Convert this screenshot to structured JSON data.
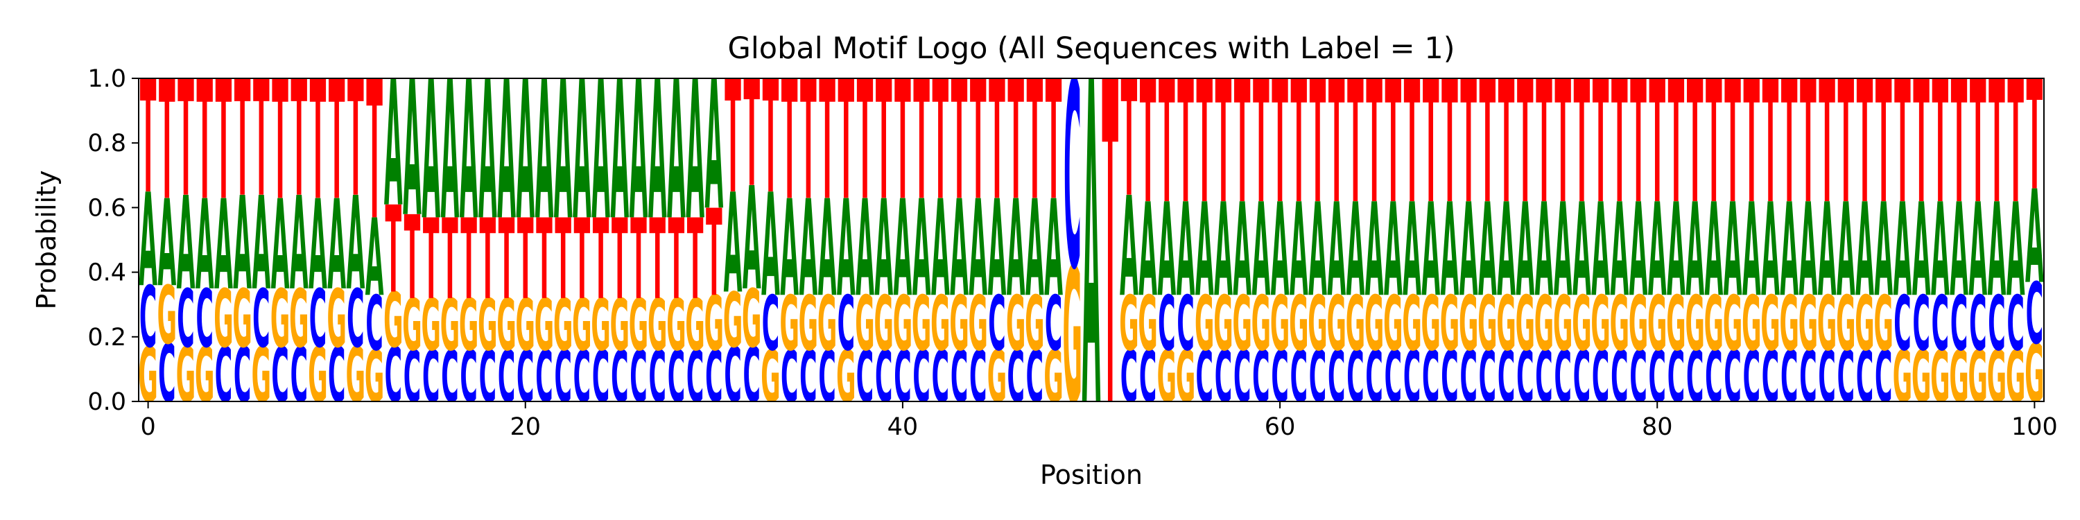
{
  "chart_data": {
    "type": "sequence-logo",
    "title": "Global Motif Logo (All Sequences with Label = 1)",
    "xlabel": "Position",
    "ylabel": "Probability",
    "xlim": [
      -0.5,
      100.5
    ],
    "ylim": [
      0,
      1
    ],
    "xticks": [
      0,
      20,
      40,
      60,
      80,
      100
    ],
    "yticks": [
      0.0,
      0.2,
      0.4,
      0.6,
      0.8,
      1.0
    ],
    "ytick_labels": [
      "0.0",
      "0.2",
      "0.4",
      "0.6",
      "0.8",
      "1.0"
    ],
    "grid": false,
    "legend": "none",
    "letters": [
      "A",
      "C",
      "G",
      "T"
    ],
    "colors": {
      "A": "#008000",
      "C": "#0000ff",
      "G": "#ffa500",
      "T": "#ff0000"
    },
    "positions": [
      {
        "A": 0.29,
        "C": 0.19,
        "G": 0.17,
        "T": 0.35
      },
      {
        "A": 0.27,
        "C": 0.18,
        "G": 0.18,
        "T": 0.37
      },
      {
        "A": 0.29,
        "C": 0.18,
        "G": 0.17,
        "T": 0.36
      },
      {
        "A": 0.28,
        "C": 0.18,
        "G": 0.17,
        "T": 0.37
      },
      {
        "A": 0.28,
        "C": 0.17,
        "G": 0.18,
        "T": 0.37
      },
      {
        "A": 0.29,
        "C": 0.17,
        "G": 0.18,
        "T": 0.36
      },
      {
        "A": 0.29,
        "C": 0.18,
        "G": 0.17,
        "T": 0.36
      },
      {
        "A": 0.28,
        "C": 0.17,
        "G": 0.18,
        "T": 0.37
      },
      {
        "A": 0.29,
        "C": 0.17,
        "G": 0.18,
        "T": 0.36
      },
      {
        "A": 0.28,
        "C": 0.18,
        "G": 0.17,
        "T": 0.37
      },
      {
        "A": 0.28,
        "C": 0.17,
        "G": 0.18,
        "T": 0.37
      },
      {
        "A": 0.29,
        "C": 0.18,
        "G": 0.17,
        "T": 0.36
      },
      {
        "A": 0.24,
        "C": 0.17,
        "G": 0.16,
        "T": 0.43
      },
      {
        "A": 0.39,
        "C": 0.17,
        "G": 0.17,
        "T": 0.27
      },
      {
        "A": 0.42,
        "C": 0.16,
        "G": 0.16,
        "T": 0.26
      },
      {
        "A": 0.43,
        "C": 0.16,
        "G": 0.16,
        "T": 0.25
      },
      {
        "A": 0.43,
        "C": 0.16,
        "G": 0.16,
        "T": 0.25
      },
      {
        "A": 0.43,
        "C": 0.16,
        "G": 0.16,
        "T": 0.25
      },
      {
        "A": 0.43,
        "C": 0.16,
        "G": 0.16,
        "T": 0.25
      },
      {
        "A": 0.43,
        "C": 0.16,
        "G": 0.16,
        "T": 0.25
      },
      {
        "A": 0.43,
        "C": 0.16,
        "G": 0.16,
        "T": 0.25
      },
      {
        "A": 0.43,
        "C": 0.16,
        "G": 0.16,
        "T": 0.25
      },
      {
        "A": 0.43,
        "C": 0.16,
        "G": 0.16,
        "T": 0.25
      },
      {
        "A": 0.43,
        "C": 0.16,
        "G": 0.16,
        "T": 0.25
      },
      {
        "A": 0.43,
        "C": 0.16,
        "G": 0.16,
        "T": 0.25
      },
      {
        "A": 0.43,
        "C": 0.16,
        "G": 0.16,
        "T": 0.25
      },
      {
        "A": 0.43,
        "C": 0.16,
        "G": 0.16,
        "T": 0.25
      },
      {
        "A": 0.43,
        "C": 0.16,
        "G": 0.16,
        "T": 0.25
      },
      {
        "A": 0.43,
        "C": 0.16,
        "G": 0.16,
        "T": 0.25
      },
      {
        "A": 0.43,
        "C": 0.16,
        "G": 0.16,
        "T": 0.25
      },
      {
        "A": 0.4,
        "C": 0.16,
        "G": 0.17,
        "T": 0.27
      },
      {
        "A": 0.31,
        "C": 0.17,
        "G": 0.17,
        "T": 0.35
      },
      {
        "A": 0.32,
        "C": 0.17,
        "G": 0.18,
        "T": 0.33
      },
      {
        "A": 0.32,
        "C": 0.17,
        "G": 0.16,
        "T": 0.35
      },
      {
        "A": 0.3,
        "C": 0.16,
        "G": 0.17,
        "T": 0.37
      },
      {
        "A": 0.3,
        "C": 0.16,
        "G": 0.17,
        "T": 0.37
      },
      {
        "A": 0.3,
        "C": 0.16,
        "G": 0.17,
        "T": 0.37
      },
      {
        "A": 0.3,
        "C": 0.17,
        "G": 0.16,
        "T": 0.37
      },
      {
        "A": 0.3,
        "C": 0.16,
        "G": 0.17,
        "T": 0.37
      },
      {
        "A": 0.3,
        "C": 0.16,
        "G": 0.17,
        "T": 0.37
      },
      {
        "A": 0.3,
        "C": 0.16,
        "G": 0.17,
        "T": 0.37
      },
      {
        "A": 0.3,
        "C": 0.16,
        "G": 0.17,
        "T": 0.37
      },
      {
        "A": 0.3,
        "C": 0.16,
        "G": 0.17,
        "T": 0.37
      },
      {
        "A": 0.3,
        "C": 0.16,
        "G": 0.17,
        "T": 0.37
      },
      {
        "A": 0.3,
        "C": 0.16,
        "G": 0.17,
        "T": 0.37
      },
      {
        "A": 0.3,
        "C": 0.17,
        "G": 0.16,
        "T": 0.37
      },
      {
        "A": 0.3,
        "C": 0.16,
        "G": 0.17,
        "T": 0.37
      },
      {
        "A": 0.3,
        "C": 0.16,
        "G": 0.17,
        "T": 0.37
      },
      {
        "A": 0.3,
        "C": 0.17,
        "G": 0.16,
        "T": 0.37
      },
      {
        "A": 0.0,
        "C": 0.58,
        "G": 0.42,
        "T": 0.0
      },
      {
        "A": 1.0,
        "C": 0.0,
        "G": 0.0,
        "T": 0.0
      },
      {
        "A": 0.0,
        "C": 0.0,
        "G": 0.0,
        "T": 1.0
      },
      {
        "A": 0.31,
        "C": 0.16,
        "G": 0.17,
        "T": 0.36
      },
      {
        "A": 0.29,
        "C": 0.16,
        "G": 0.17,
        "T": 0.38
      },
      {
        "A": 0.29,
        "C": 0.17,
        "G": 0.16,
        "T": 0.38
      },
      {
        "A": 0.29,
        "C": 0.17,
        "G": 0.16,
        "T": 0.38
      },
      {
        "A": 0.29,
        "C": 0.16,
        "G": 0.17,
        "T": 0.38
      },
      {
        "A": 0.29,
        "C": 0.16,
        "G": 0.17,
        "T": 0.38
      },
      {
        "A": 0.29,
        "C": 0.16,
        "G": 0.17,
        "T": 0.38
      },
      {
        "A": 0.29,
        "C": 0.16,
        "G": 0.17,
        "T": 0.38
      },
      {
        "A": 0.29,
        "C": 0.16,
        "G": 0.17,
        "T": 0.38
      },
      {
        "A": 0.29,
        "C": 0.16,
        "G": 0.17,
        "T": 0.38
      },
      {
        "A": 0.29,
        "C": 0.16,
        "G": 0.17,
        "T": 0.38
      },
      {
        "A": 0.29,
        "C": 0.16,
        "G": 0.17,
        "T": 0.38
      },
      {
        "A": 0.29,
        "C": 0.16,
        "G": 0.17,
        "T": 0.38
      },
      {
        "A": 0.29,
        "C": 0.16,
        "G": 0.17,
        "T": 0.38
      },
      {
        "A": 0.29,
        "C": 0.16,
        "G": 0.17,
        "T": 0.38
      },
      {
        "A": 0.29,
        "C": 0.16,
        "G": 0.17,
        "T": 0.38
      },
      {
        "A": 0.29,
        "C": 0.16,
        "G": 0.17,
        "T": 0.38
      },
      {
        "A": 0.29,
        "C": 0.16,
        "G": 0.17,
        "T": 0.38
      },
      {
        "A": 0.29,
        "C": 0.16,
        "G": 0.17,
        "T": 0.38
      },
      {
        "A": 0.29,
        "C": 0.16,
        "G": 0.17,
        "T": 0.38
      },
      {
        "A": 0.29,
        "C": 0.16,
        "G": 0.17,
        "T": 0.38
      },
      {
        "A": 0.29,
        "C": 0.16,
        "G": 0.17,
        "T": 0.38
      },
      {
        "A": 0.29,
        "C": 0.16,
        "G": 0.17,
        "T": 0.38
      },
      {
        "A": 0.29,
        "C": 0.16,
        "G": 0.17,
        "T": 0.38
      },
      {
        "A": 0.29,
        "C": 0.16,
        "G": 0.17,
        "T": 0.38
      },
      {
        "A": 0.29,
        "C": 0.16,
        "G": 0.17,
        "T": 0.38
      },
      {
        "A": 0.29,
        "C": 0.16,
        "G": 0.17,
        "T": 0.38
      },
      {
        "A": 0.29,
        "C": 0.16,
        "G": 0.17,
        "T": 0.38
      },
      {
        "A": 0.29,
        "C": 0.16,
        "G": 0.17,
        "T": 0.38
      },
      {
        "A": 0.29,
        "C": 0.16,
        "G": 0.17,
        "T": 0.38
      },
      {
        "A": 0.29,
        "C": 0.16,
        "G": 0.17,
        "T": 0.38
      },
      {
        "A": 0.29,
        "C": 0.16,
        "G": 0.17,
        "T": 0.38
      },
      {
        "A": 0.29,
        "C": 0.16,
        "G": 0.17,
        "T": 0.38
      },
      {
        "A": 0.29,
        "C": 0.16,
        "G": 0.17,
        "T": 0.38
      },
      {
        "A": 0.29,
        "C": 0.16,
        "G": 0.17,
        "T": 0.38
      },
      {
        "A": 0.29,
        "C": 0.16,
        "G": 0.17,
        "T": 0.38
      },
      {
        "A": 0.29,
        "C": 0.16,
        "G": 0.17,
        "T": 0.38
      },
      {
        "A": 0.29,
        "C": 0.16,
        "G": 0.17,
        "T": 0.38
      },
      {
        "A": 0.29,
        "C": 0.16,
        "G": 0.17,
        "T": 0.38
      },
      {
        "A": 0.29,
        "C": 0.16,
        "G": 0.17,
        "T": 0.38
      },
      {
        "A": 0.29,
        "C": 0.16,
        "G": 0.17,
        "T": 0.38
      },
      {
        "A": 0.29,
        "C": 0.17,
        "G": 0.16,
        "T": 0.38
      },
      {
        "A": 0.29,
        "C": 0.17,
        "G": 0.16,
        "T": 0.38
      },
      {
        "A": 0.29,
        "C": 0.17,
        "G": 0.16,
        "T": 0.38
      },
      {
        "A": 0.29,
        "C": 0.17,
        "G": 0.16,
        "T": 0.38
      },
      {
        "A": 0.29,
        "C": 0.17,
        "G": 0.16,
        "T": 0.38
      },
      {
        "A": 0.29,
        "C": 0.17,
        "G": 0.16,
        "T": 0.38
      },
      {
        "A": 0.29,
        "C": 0.17,
        "G": 0.16,
        "T": 0.38
      },
      {
        "A": 0.29,
        "C": 0.19,
        "G": 0.18,
        "T": 0.34
      }
    ]
  }
}
